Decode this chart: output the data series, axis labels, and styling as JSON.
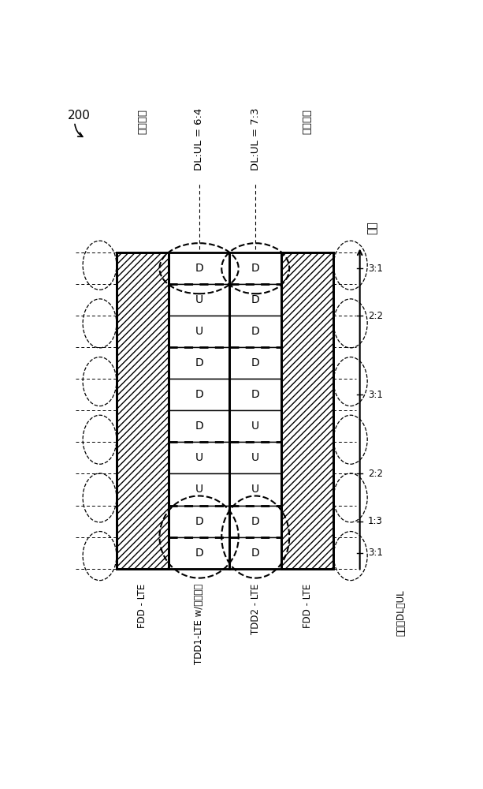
{
  "fig_width": 6.13,
  "fig_height": 10.0,
  "top_labels": [
    "下行链路",
    "DL:UL = 6:4",
    "DL:UL = 7:3",
    "上行链路"
  ],
  "bottom_labels": [
    "FDD - LTE",
    "TDD1-LTE w/免许可的",
    "TDD2 - LTE",
    "FDD - LTE"
  ],
  "bottom_label2": "有效的DL：UL",
  "time_label": "时间",
  "time_axis_labels": [
    "3:1",
    "2:2",
    "3:1",
    "2:2",
    "1:3",
    "3:1"
  ],
  "tdd1_cells": [
    "D",
    "U",
    "U",
    "D",
    "D",
    "D",
    "U",
    "U",
    "D",
    "D"
  ],
  "tdd2_cells": [
    "D",
    "D",
    "D",
    "D",
    "D",
    "U",
    "U",
    "U",
    "D",
    "D"
  ],
  "label_200": "200",
  "group_boundaries": [
    0,
    1,
    3,
    6,
    8,
    9,
    10
  ],
  "bold_row_boundaries": [
    1,
    3,
    6,
    8,
    9
  ]
}
